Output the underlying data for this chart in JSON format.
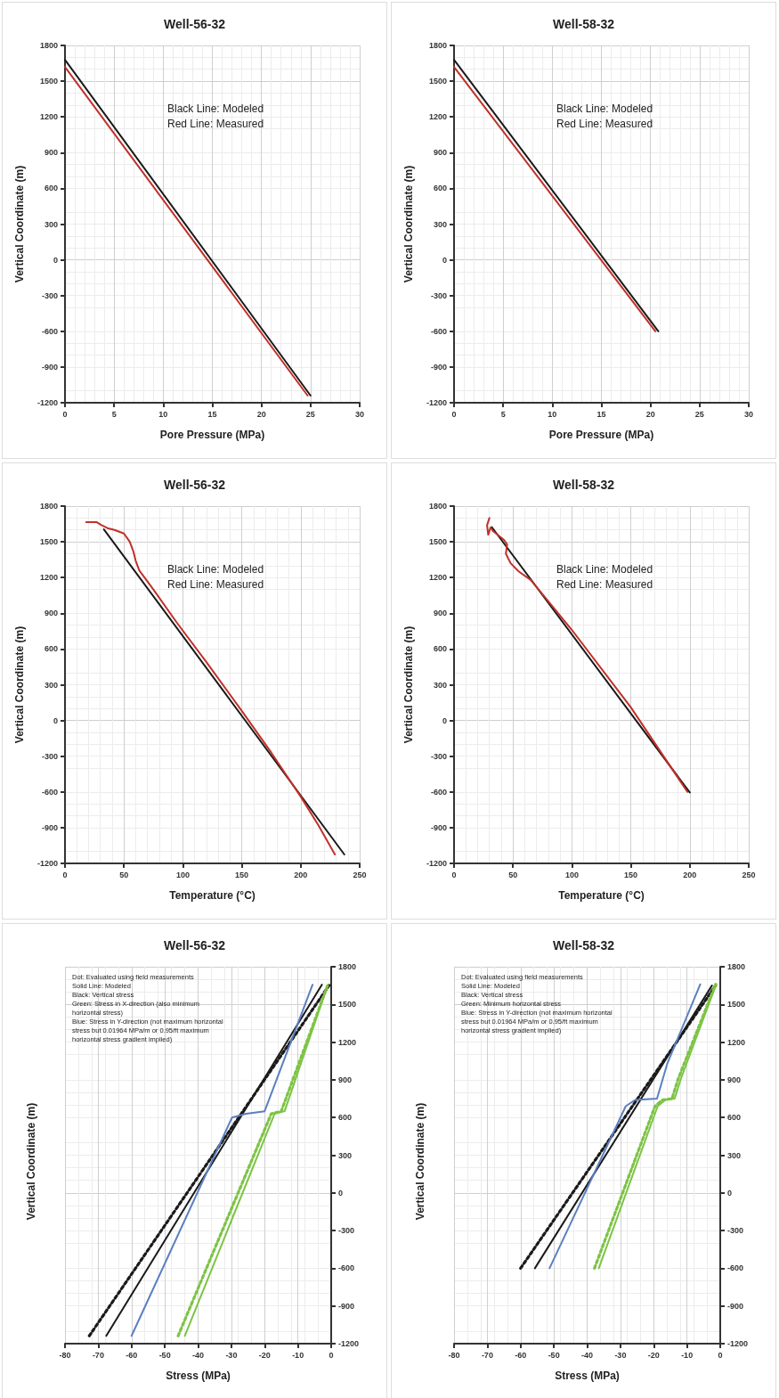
{
  "chart_data": [
    {
      "type": "line",
      "title": "Well-56-32",
      "xlabel": "Pore Pressure (MPa)",
      "ylabel": "Vertical Coordinate (m)",
      "xlim": [
        0,
        30
      ],
      "xticks": [
        0,
        5,
        10,
        15,
        20,
        25,
        30
      ],
      "ylim": [
        -1200,
        1800
      ],
      "yticks": [
        -1200,
        -900,
        -600,
        -300,
        0,
        300,
        600,
        900,
        1200,
        1500,
        1800
      ],
      "grid": true,
      "marker": "none",
      "line_style": "solid",
      "annotations": [
        "Black Line: Modeled",
        "Red Line: Measured"
      ],
      "series": [
        {
          "color": "#1a1a1a",
          "x": [
            0,
            25
          ],
          "values": [
            1680,
            -1140
          ]
        },
        {
          "color": "#c0302a",
          "x": [
            0,
            24.7
          ],
          "values": [
            1620,
            -1140
          ]
        }
      ]
    },
    {
      "type": "line",
      "title": "Well-58-32",
      "xlabel": "Pore Pressure (MPa)",
      "ylabel": "Vertical Coordinate (m)",
      "xlim": [
        0,
        30
      ],
      "xticks": [
        0,
        5,
        10,
        15,
        20,
        25,
        30
      ],
      "ylim": [
        -1200,
        1800
      ],
      "yticks": [
        -1200,
        -900,
        -600,
        -300,
        0,
        300,
        600,
        900,
        1200,
        1500,
        1800
      ],
      "grid": true,
      "marker": "none",
      "line_style": "solid",
      "annotations": [
        "Black Line: Modeled",
        "Red Line: Measured"
      ],
      "series": [
        {
          "color": "#1a1a1a",
          "x": [
            0,
            20.8
          ],
          "values": [
            1680,
            -600
          ]
        },
        {
          "color": "#c0302a",
          "x": [
            0,
            20.5
          ],
          "values": [
            1620,
            -600
          ]
        }
      ]
    },
    {
      "type": "line",
      "title": "Well-56-32",
      "xlabel": "Temperature (°C)",
      "ylabel": "Vertical Coordinate (m)",
      "xlim": [
        0,
        250
      ],
      "xticks": [
        0,
        50,
        100,
        150,
        200,
        250
      ],
      "ylim": [
        -1200,
        1800
      ],
      "yticks": [
        -1200,
        -900,
        -600,
        -300,
        0,
        300,
        600,
        900,
        1200,
        1500,
        1800
      ],
      "grid": true,
      "marker": "none",
      "line_style": "solid",
      "annotations": [
        "Black Line: Modeled",
        "Red Line: Measured"
      ],
      "series": [
        {
          "color": "#1a1a1a",
          "x": [
            33,
            237
          ],
          "values": [
            1605,
            -1125
          ]
        },
        {
          "color": "#c0302a",
          "x": [
            18,
            27,
            31,
            36,
            42,
            50,
            55,
            58,
            60,
            63,
            75,
            95,
            120,
            150,
            175,
            200,
            215,
            229
          ],
          "values": [
            1665,
            1665,
            1640,
            1615,
            1600,
            1570,
            1500,
            1420,
            1340,
            1260,
            1100,
            820,
            490,
            80,
            -270,
            -640,
            -880,
            -1125
          ]
        }
      ]
    },
    {
      "type": "line",
      "title": "Well-58-32",
      "xlabel": "Temperature (°C)",
      "ylabel": "Vertical Coordinate (m)",
      "xlim": [
        0,
        250
      ],
      "xticks": [
        0,
        50,
        100,
        150,
        200,
        250
      ],
      "ylim": [
        -1200,
        1800
      ],
      "yticks": [
        -1200,
        -900,
        -600,
        -300,
        0,
        300,
        600,
        900,
        1200,
        1500,
        1800
      ],
      "grid": true,
      "marker": "none",
      "line_style": "solid",
      "annotations": [
        "Black Line: Modeled",
        "Red Line: Measured"
      ],
      "series": [
        {
          "color": "#1a1a1a",
          "x": [
            32,
            200
          ],
          "values": [
            1624,
            -605
          ]
        },
        {
          "color": "#c0302a",
          "x": [
            30,
            28,
            29,
            31,
            33,
            42,
            45,
            44,
            48,
            55,
            65,
            80,
            100,
            150,
            198
          ],
          "values": [
            1700,
            1640,
            1560,
            1620,
            1590,
            1520,
            1480,
            1400,
            1320,
            1250,
            1180,
            1000,
            760,
            110,
            -600
          ]
        }
      ]
    },
    {
      "type": "line",
      "title": "Well-56-32",
      "xlabel": "Stress (MPa)",
      "ylabel": "Vertical Coordinate (m)",
      "xlim": [
        -80,
        0
      ],
      "xticks": [
        -80,
        -70,
        -60,
        -50,
        -40,
        -30,
        -20,
        -10,
        0
      ],
      "y2lim": [
        -1200,
        1800
      ],
      "y2ticks": [
        -1200,
        -900,
        -600,
        -300,
        0,
        300,
        600,
        900,
        1200,
        1500,
        1800
      ],
      "grid": true,
      "marker": "none",
      "line_style": "solid",
      "annotations": [
        "Dot: Evaluated using field measurements",
        "Solid Line: Modeled",
        "Black: Vertical stress",
        "Green: Stress in X-direction (also minimum horizontal stress)",
        "Blue: Stress in Y-direction (not maximum horizontal stress but 0.01964 MPa/m or 0.95/ft maximum horizontal stress gradient implied)"
      ],
      "series": [
        {
          "axis": "y2",
          "color": "#1a1a1a",
          "line_style": "dotted",
          "x": [
            -72.7,
            -0.5
          ],
          "values": [
            -1138,
            1657
          ]
        },
        {
          "axis": "y2",
          "color": "#1a1a1a",
          "x": [
            -67.6,
            -2.8
          ],
          "values": [
            -1138,
            1657
          ]
        },
        {
          "axis": "y2",
          "color": "#5b7fc0",
          "x": [
            -60,
            -29.8,
            -25.6,
            -20,
            -5.6
          ],
          "values": [
            -1138,
            600,
            630,
            650,
            1657
          ]
        },
        {
          "axis": "y2",
          "color": "#7cc444",
          "line_style": "dotted",
          "x": [
            -46,
            -18,
            -15,
            -1
          ],
          "values": [
            -1138,
            630,
            650,
            1657
          ]
        },
        {
          "axis": "y2",
          "color": "#7cc444",
          "x": [
            -44,
            -17,
            -14,
            -1
          ],
          "values": [
            -1138,
            630,
            650,
            1657
          ]
        }
      ]
    },
    {
      "type": "line",
      "title": "Well-58-32",
      "xlabel": "Stress (MPa)",
      "ylabel": "Vertical Coordinate (m)",
      "xlim": [
        -80,
        0
      ],
      "xticks": [
        -80,
        -70,
        -60,
        -50,
        -40,
        -30,
        -20,
        -10,
        0
      ],
      "y2lim": [
        -1200,
        1800
      ],
      "y2ticks": [
        -1200,
        -900,
        -600,
        -300,
        0,
        300,
        600,
        900,
        1200,
        1500,
        1800
      ],
      "grid": true,
      "marker": "none",
      "line_style": "solid",
      "annotations": [
        "Dot: Evaluated using field measurements",
        "Solid Line: Modeled",
        "Black: Vertical stress",
        "Green: Minimum horizontal stress",
        "Blue: Stress in Y-direction (not maximum horizontal stress but 0.01964 MPa/m or 0.95/ft maximum horizontal stress gradient implied)"
      ],
      "series": [
        {
          "axis": "y2",
          "color": "#1a1a1a",
          "line_style": "dotted",
          "x": [
            -60,
            -1.4
          ],
          "values": [
            -600,
            1650
          ]
        },
        {
          "axis": "y2",
          "color": "#1a1a1a",
          "x": [
            -55.7,
            -2.5
          ],
          "values": [
            -600,
            1650
          ]
        },
        {
          "axis": "y2",
          "color": "#5b7fc0",
          "x": [
            -51.3,
            -28.4,
            -25.6,
            -19,
            -15.9,
            -6
          ],
          "values": [
            -600,
            690,
            740,
            750,
            1030,
            1660
          ]
        },
        {
          "axis": "y2",
          "color": "#7cc444",
          "line_style": "dotted",
          "x": [
            -37.8,
            -19.6,
            -17.3,
            -14.5,
            -12.6,
            -1.4
          ],
          "values": [
            -600,
            690,
            740,
            750,
            910,
            1660
          ]
        },
        {
          "axis": "y2",
          "color": "#7cc444",
          "x": [
            -36.5,
            -18.8,
            -16.5,
            -13.7,
            -11.8,
            -1.2
          ],
          "values": [
            -600,
            690,
            740,
            750,
            910,
            1660
          ]
        }
      ]
    }
  ]
}
